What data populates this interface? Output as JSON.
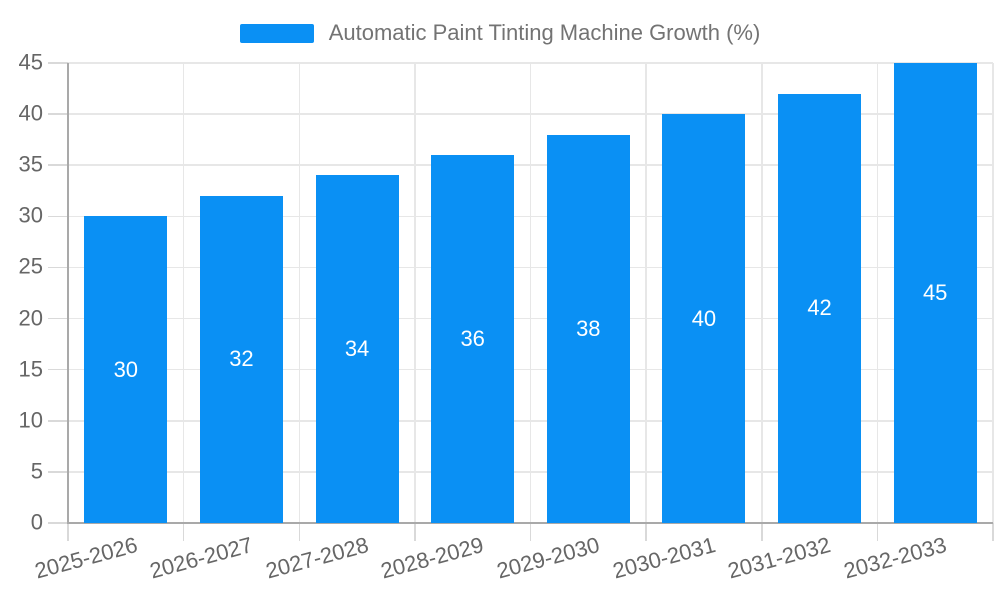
{
  "chart_data": {
    "type": "bar",
    "title": "",
    "xlabel": "",
    "ylabel": "",
    "legend": {
      "label": "Automatic Paint Tinting Machine Growth (%)",
      "position": "top"
    },
    "categories": [
      "2025-2026",
      "2026-2027",
      "2027-2028",
      "2028-2029",
      "2029-2030",
      "2030-2031",
      "2031-2032",
      "2032-2033"
    ],
    "values": [
      30,
      32,
      34,
      36,
      38,
      40,
      42,
      45
    ],
    "value_labels_visible": true,
    "yticks": [
      0,
      5,
      10,
      15,
      20,
      25,
      30,
      35,
      40,
      45
    ],
    "ylim": [
      0,
      45
    ],
    "grid": true,
    "x_label_rotation_deg": -15,
    "colors": {
      "bar": "#0a90f4",
      "value_label": "#ffffff",
      "tick_text": "#666666",
      "legend_text": "#737373",
      "gridline": "#e7e7e7",
      "axis_line": "#a9a9a9",
      "tick_mark": "#d9d9d9",
      "background": "#ffffff"
    }
  }
}
